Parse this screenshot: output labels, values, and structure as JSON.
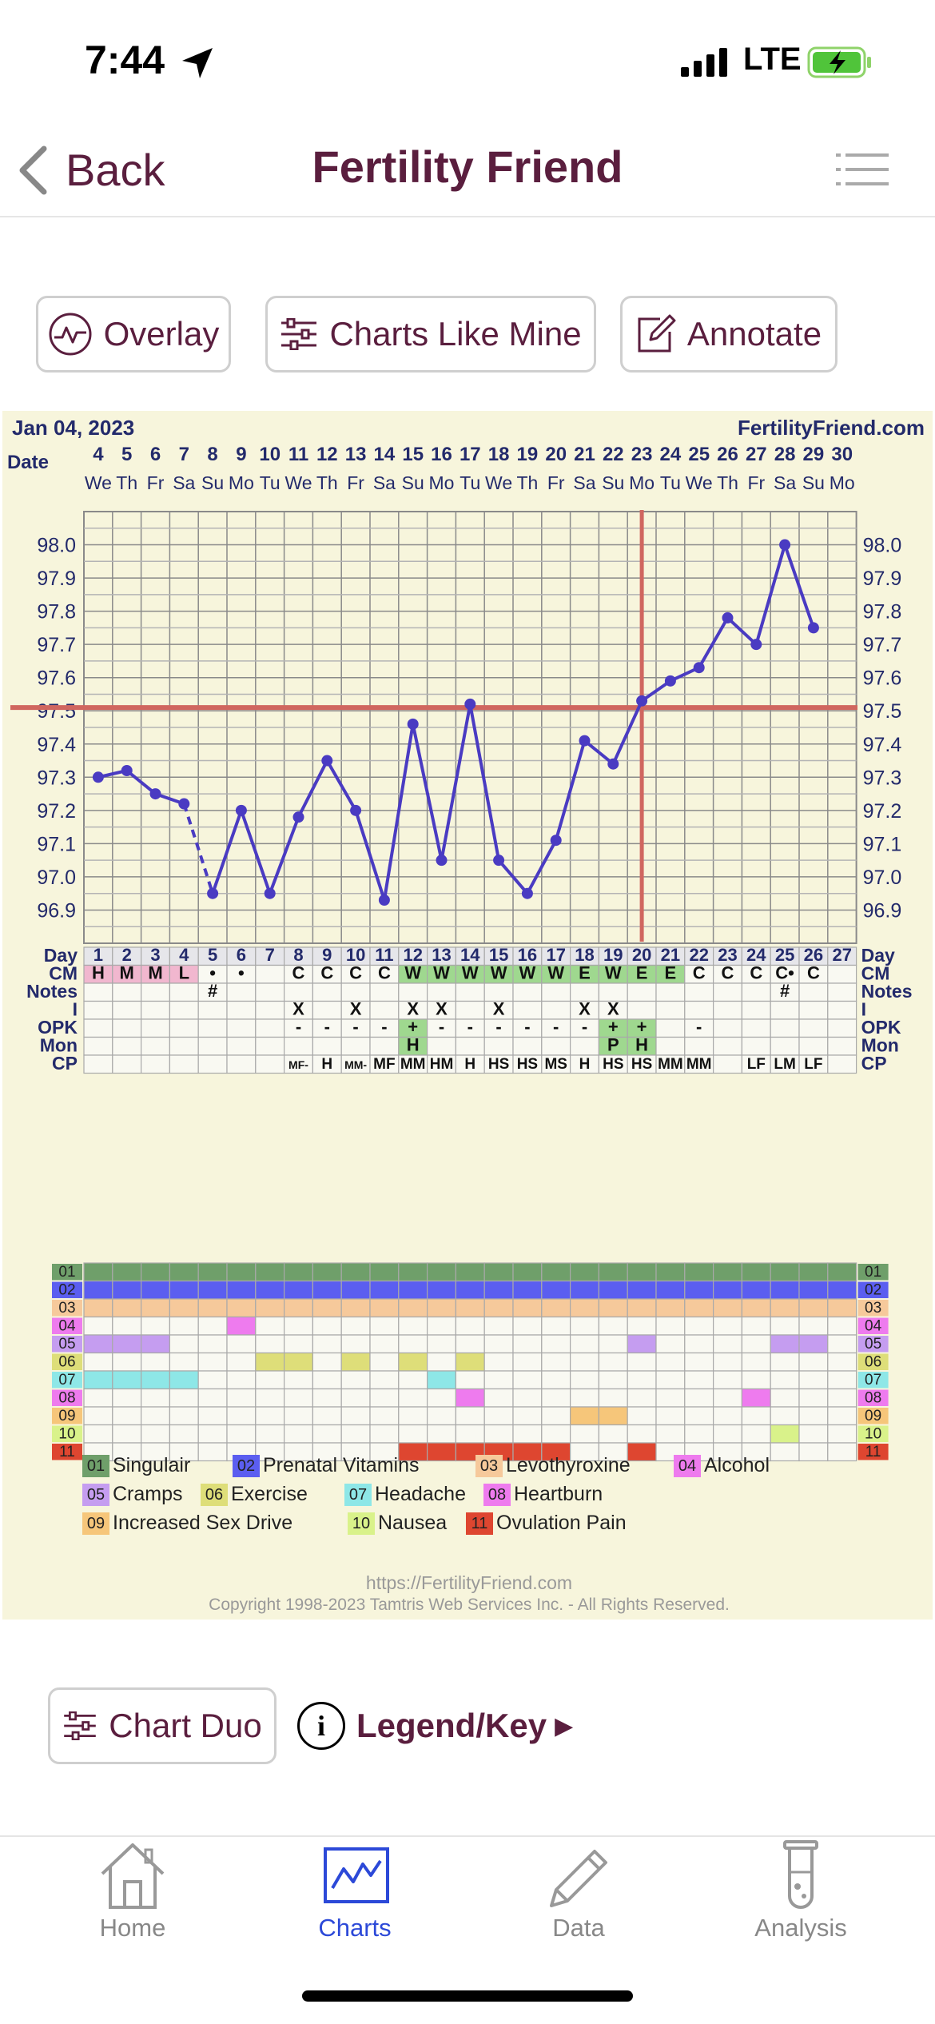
{
  "status": {
    "time": "7:44",
    "network": "LTE"
  },
  "nav": {
    "back_label": "Back",
    "title": "Fertility Friend"
  },
  "actions": {
    "overlay": "Overlay",
    "charts_like_mine": "Charts Like Mine",
    "annotate": "Annotate"
  },
  "chart": {
    "start_date": "Jan 04, 2023",
    "site": "FertilityFriend.com",
    "url": "https://FertilityFriend.com",
    "copyright": "Copyright 1998-2023 Tamtris Web Services Inc. - All Rights Reserved.",
    "row_labels": {
      "date": "Date",
      "day": "Day",
      "cm": "CM",
      "notes": "Notes",
      "i": "I",
      "opk": "OPK",
      "mon": "Mon",
      "cp": "CP"
    },
    "dates": [
      "4",
      "5",
      "6",
      "7",
      "8",
      "9",
      "10",
      "11",
      "12",
      "13",
      "14",
      "15",
      "16",
      "17",
      "18",
      "19",
      "20",
      "21",
      "22",
      "23",
      "24",
      "25",
      "26",
      "27",
      "28",
      "29",
      "30"
    ],
    "weekdays": [
      "We",
      "Th",
      "Fr",
      "Sa",
      "Su",
      "Mo",
      "Tu",
      "We",
      "Th",
      "Fr",
      "Sa",
      "Su",
      "Mo",
      "Tu",
      "We",
      "Th",
      "Fr",
      "Sa",
      "Su",
      "Mo",
      "Tu",
      "We",
      "Th",
      "Fr",
      "Sa",
      "Su",
      "Mo"
    ],
    "days": [
      "1",
      "2",
      "3",
      "4",
      "5",
      "6",
      "7",
      "8",
      "9",
      "10",
      "11",
      "12",
      "13",
      "14",
      "15",
      "16",
      "17",
      "18",
      "19",
      "20",
      "21",
      "22",
      "23",
      "24",
      "25",
      "26",
      "27"
    ],
    "cm": [
      "H",
      "M",
      "M",
      "L",
      "•",
      "•",
      "",
      "C",
      "C",
      "C",
      "C",
      "W",
      "W",
      "W",
      "W",
      "W",
      "W",
      "E",
      "W",
      "E",
      "E",
      "C",
      "C",
      "C",
      "C•",
      "C",
      ""
    ],
    "notes": [
      "",
      "",
      "",
      "",
      "#",
      "",
      "",
      "",
      "",
      "",
      "",
      "",
      "",
      "",
      "",
      "",
      "",
      "",
      "",
      "",
      "",
      "",
      "",
      "",
      "#",
      "",
      ""
    ],
    "intercourse": [
      "",
      "",
      "",
      "",
      "",
      "",
      "",
      "X",
      "",
      "X",
      "",
      "X",
      "X",
      "",
      "X",
      "",
      "",
      "X",
      "X",
      "",
      "",
      "",
      "",
      "",
      "",
      "",
      ""
    ],
    "opk": [
      "",
      "",
      "",
      "",
      "",
      "",
      "",
      "-",
      "-",
      "-",
      "-",
      "+",
      "-",
      "-",
      "-",
      "-",
      "-",
      "-",
      "+",
      "+",
      "",
      "-",
      "",
      "",
      "",
      "",
      ""
    ],
    "monitor": [
      "",
      "",
      "",
      "",
      "",
      "",
      "",
      "",
      "",
      "",
      "",
      "H",
      "",
      "",
      "",
      "",
      "",
      "",
      "P",
      "H",
      "",
      "",
      "",
      "",
      "",
      "",
      ""
    ],
    "cp": [
      "",
      "",
      "",
      "",
      "",
      "",
      "",
      "MF-",
      "H",
      "MM-",
      "MF",
      "MM",
      "HM",
      "H",
      "HS",
      "HS",
      "MS",
      "H",
      "HS",
      "HS",
      "MM",
      "MM",
      "",
      "LF",
      "LM",
      "LF",
      ""
    ],
    "temp_axis": [
      "98.0",
      "97.9",
      "97.8",
      "97.7",
      "97.6",
      "97.5",
      "97.4",
      "97.3",
      "97.2",
      "97.1",
      "97.0",
      "96.9"
    ],
    "temps": [
      97.3,
      97.32,
      97.25,
      97.22,
      96.95,
      97.2,
      96.95,
      97.18,
      97.35,
      97.2,
      96.93,
      97.46,
      97.05,
      97.52,
      97.05,
      96.95,
      97.11,
      97.41,
      97.34,
      97.53,
      97.59,
      97.63,
      97.78,
      97.7,
      98.0,
      97.75,
      null
    ],
    "coverline": 97.51,
    "ovulation_day": 20,
    "colors": {
      "coverline": "#d0665f",
      "temp_line": "#4a3bc2",
      "cm_fertile": "#9fd88f",
      "cm_menses": "#f1b7cf",
      "panel_bg": "#f7f5dc"
    },
    "symptoms": [
      {
        "code": "01",
        "name": "Singulair",
        "color": "#6f9f6a",
        "days": "all"
      },
      {
        "code": "02",
        "name": "Prenatal Vitamins",
        "color": "#5b5ef0",
        "days": "all"
      },
      {
        "code": "03",
        "name": "Levothyroxine",
        "color": "#f6c99b",
        "days": "all"
      },
      {
        "code": "04",
        "name": "Alcohol",
        "color": "#ee7bee",
        "days": [
          6
        ]
      },
      {
        "code": "05",
        "name": "Cramps",
        "color": "#c59df0",
        "days": [
          1,
          2,
          3,
          20,
          25,
          26
        ]
      },
      {
        "code": "06",
        "name": "Exercise",
        "color": "#dede79",
        "days": [
          7,
          8,
          10,
          12,
          14
        ]
      },
      {
        "code": "07",
        "name": "Headache",
        "color": "#8ee7e7",
        "days": [
          1,
          2,
          3,
          4,
          13
        ]
      },
      {
        "code": "08",
        "name": "Heartburn",
        "color": "#ee7bee",
        "days": [
          14,
          24
        ]
      },
      {
        "code": "09",
        "name": "Increased Sex Drive",
        "color": "#f6c67a",
        "days": [
          18,
          19
        ]
      },
      {
        "code": "10",
        "name": "Nausea",
        "color": "#d9f28a",
        "days": [
          25
        ]
      },
      {
        "code": "11",
        "name": "Ovulation Pain",
        "color": "#de4630",
        "days": [
          12,
          13,
          14,
          15,
          16,
          17,
          20
        ]
      }
    ]
  },
  "bottom_actions": {
    "chart_duo": "Chart Duo",
    "legend": "Legend/Key",
    "legend_arrow": "▶",
    "info_glyph": "i"
  },
  "tabs": [
    {
      "label": "Home",
      "icon": "house-icon"
    },
    {
      "label": "Charts",
      "icon": "chart-icon"
    },
    {
      "label": "Data",
      "icon": "pencil-icon"
    },
    {
      "label": "Analysis",
      "icon": "test-tube-icon"
    }
  ]
}
